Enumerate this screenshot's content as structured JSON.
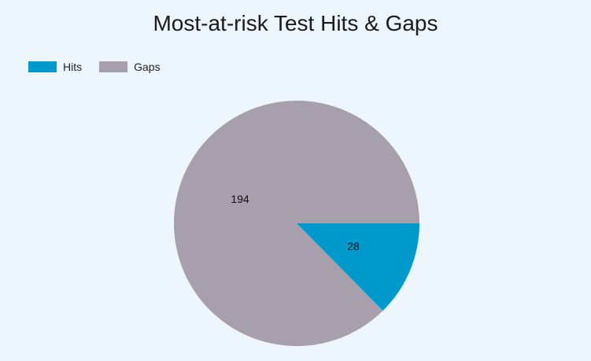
{
  "chart_data": {
    "type": "pie",
    "title": "Most-at-risk Test Hits & Gaps",
    "legend_position": "top-left",
    "slices": [
      {
        "name": "Hits",
        "value": 28,
        "color": "#0099cc",
        "label": "28"
      },
      {
        "name": "Gaps",
        "value": 194,
        "color": "#a89fad",
        "label": "194"
      }
    ]
  }
}
